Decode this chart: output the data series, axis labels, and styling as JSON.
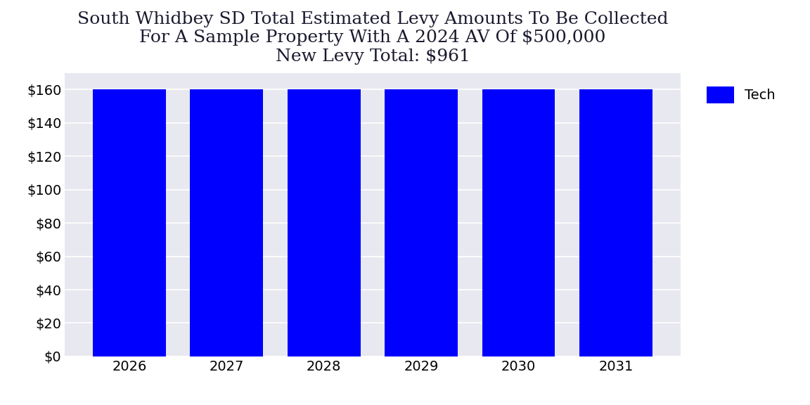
{
  "title_line1": "South Whidbey SD Total Estimated Levy Amounts To Be Collected",
  "title_line2": "For A Sample Property With A 2024 AV Of $500,000",
  "title_line3": "New Levy Total: $961",
  "years": [
    2026,
    2027,
    2028,
    2029,
    2030,
    2031
  ],
  "values": [
    160,
    160,
    160,
    160,
    160,
    160
  ],
  "bar_color": "#0000ff",
  "legend_label": "Tech",
  "ylim": [
    0,
    170
  ],
  "ytick_values": [
    0,
    20,
    40,
    60,
    80,
    100,
    120,
    140,
    160
  ],
  "figure_bg_color": "#ffffff",
  "plot_bg_color": "#e8e8f0",
  "title_fontsize": 18,
  "tick_fontsize": 14,
  "legend_fontsize": 14,
  "bar_width": 0.75
}
